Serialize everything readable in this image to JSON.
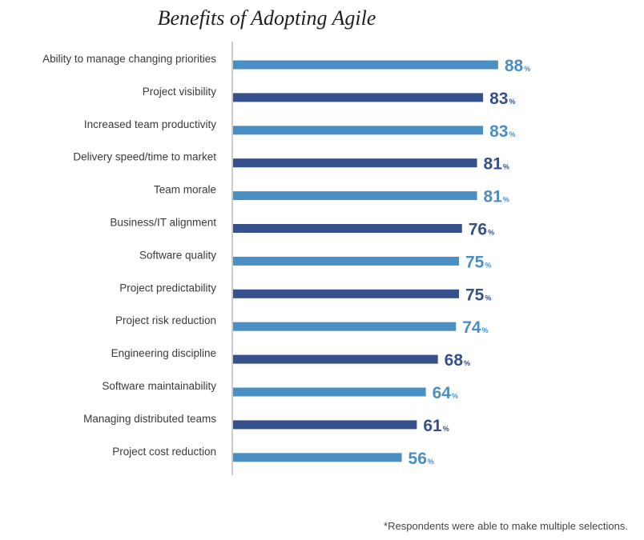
{
  "chart_data": {
    "type": "bar",
    "orientation": "horizontal",
    "title": "Benefits of Adopting Agile",
    "categories": [
      "Ability to manage changing priorities",
      "Project visibility",
      "Increased team productivity",
      "Delivery speed/time to market",
      "Team morale",
      "Business/IT alignment",
      "Software quality",
      "Project predictability",
      "Project risk reduction",
      "Engineering discipline",
      "Software maintainability",
      "Managing distributed teams",
      "Project cost reduction"
    ],
    "values": [
      88,
      83,
      83,
      81,
      81,
      76,
      75,
      75,
      74,
      68,
      64,
      61,
      56
    ],
    "value_suffix": "%",
    "xlim": [
      0,
      100
    ],
    "grid": false,
    "legend": "none",
    "colors": [
      "#4a8fc4",
      "#35508a"
    ]
  },
  "footnote": "*Respondents were able to make multiple selections."
}
